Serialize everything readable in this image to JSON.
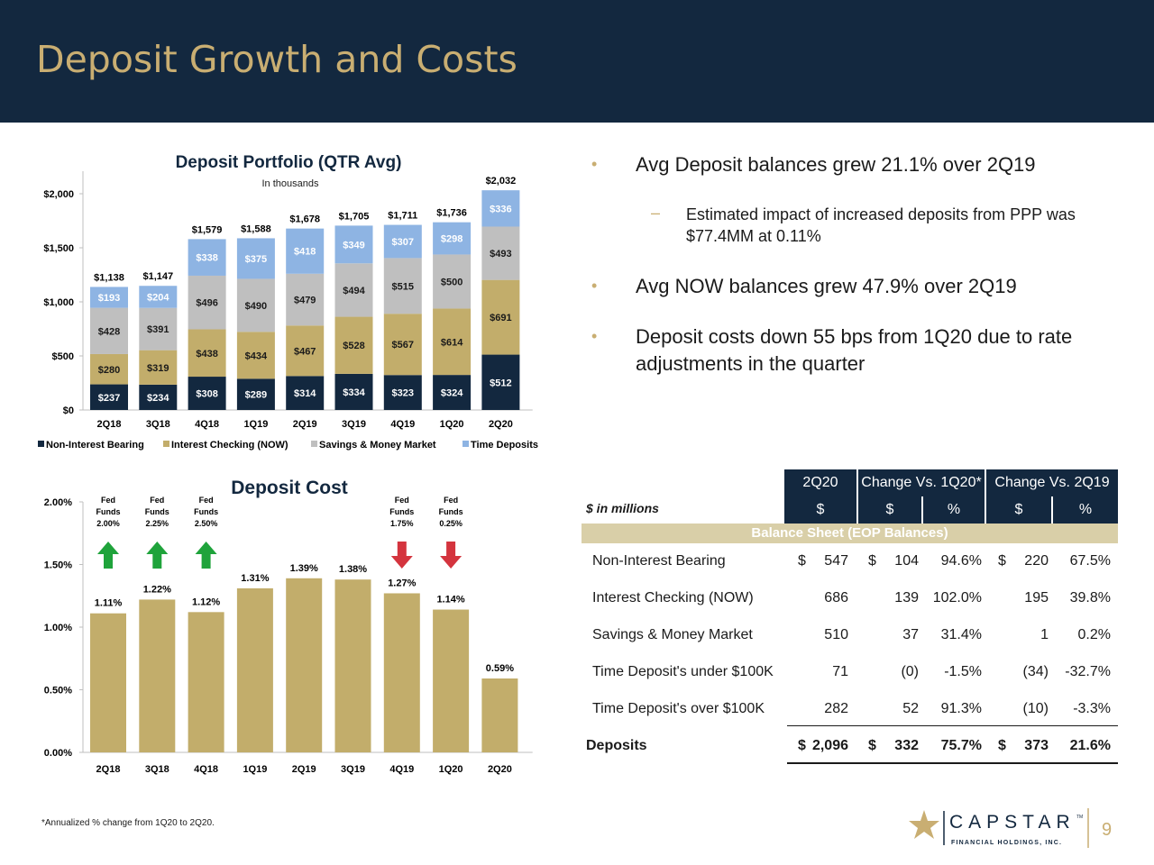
{
  "title": "Deposit Growth and Costs",
  "portfolio_chart": {
    "title": "Deposit Portfolio (QTR Avg)",
    "subtitle": "In thousands",
    "categories": [
      "2Q18",
      "3Q18",
      "4Q18",
      "1Q19",
      "2Q19",
      "3Q19",
      "4Q19",
      "1Q20",
      "2Q20"
    ],
    "series": [
      {
        "name": "Non-Interest Bearing",
        "color": "#13283f",
        "text": "#ffffff",
        "values": [
          237,
          234,
          308,
          289,
          314,
          334,
          323,
          324,
          512
        ],
        "labels": [
          "$237",
          "$234",
          "$308",
          "$289",
          "$314",
          "$334",
          "$323",
          "$324",
          "$512"
        ]
      },
      {
        "name": "Interest Checking (NOW)",
        "color": "#c2ad6b",
        "text": "#1a1a1a",
        "values": [
          280,
          319,
          438,
          434,
          467,
          528,
          567,
          614,
          691
        ],
        "labels": [
          "$280",
          "$319",
          "$438",
          "$434",
          "$467",
          "$528",
          "$567",
          "$614",
          "$691"
        ]
      },
      {
        "name": "Savings & Money Market",
        "color": "#bfbfbf",
        "text": "#1a1a1a",
        "values": [
          428,
          391,
          496,
          490,
          479,
          494,
          515,
          500,
          493
        ],
        "labels": [
          "$428",
          "$391",
          "$496",
          "$490",
          "$479",
          "$494",
          "$515",
          "$500",
          "$493"
        ]
      },
      {
        "name": "Time Deposits",
        "color": "#8eb4e3",
        "text": "#ffffff",
        "values": [
          193,
          204,
          338,
          375,
          418,
          349,
          307,
          298,
          336
        ],
        "labels": [
          "$193",
          "$204",
          "$338",
          "$375",
          "$418",
          "$349",
          "$307",
          "$298",
          "$336"
        ]
      }
    ],
    "totals": [
      "$1,138",
      "$1,147",
      "$1,579",
      "$1,588",
      "$1,678",
      "$1,705",
      "$1,711",
      "$1,736",
      "$2,032"
    ],
    "y_ticks": [
      "$0",
      "$500",
      "$1,000",
      "$1,500",
      "$2,000"
    ],
    "ylim": [
      0,
      2000
    ]
  },
  "cost_chart": {
    "title": "Deposit Cost",
    "categories": [
      "2Q18",
      "3Q18",
      "4Q18",
      "1Q19",
      "2Q19",
      "3Q19",
      "4Q19",
      "1Q20",
      "2Q20"
    ],
    "values": [
      1.11,
      1.22,
      1.12,
      1.31,
      1.39,
      1.38,
      1.27,
      1.14,
      0.59
    ],
    "labels": [
      "1.11%",
      "1.22%",
      "1.12%",
      "1.31%",
      "1.39%",
      "1.38%",
      "1.27%",
      "1.14%",
      "0.59%"
    ],
    "y_ticks": [
      "0.00%",
      "0.50%",
      "1.00%",
      "1.50%",
      "2.00%"
    ],
    "ylim": [
      0,
      2.0
    ],
    "fed_notes": [
      {
        "index": 0,
        "direction": "up",
        "lines": [
          "Fed",
          "Funds",
          "2.00%"
        ]
      },
      {
        "index": 1,
        "direction": "up",
        "lines": [
          "Fed",
          "Funds",
          "2.25%"
        ]
      },
      {
        "index": 2,
        "direction": "up",
        "lines": [
          "Fed",
          "Funds",
          "2.50%"
        ]
      },
      {
        "index": 6,
        "direction": "down",
        "lines": [
          "Fed",
          "Funds",
          "1.75%"
        ]
      },
      {
        "index": 7,
        "direction": "down",
        "lines": [
          "Fed",
          "Funds",
          "0.25%"
        ]
      }
    ]
  },
  "chart_data": [
    {
      "type": "bar",
      "title": "Deposit Portfolio (QTR Avg)",
      "subtitle": "In thousands",
      "categories": [
        "2Q18",
        "3Q18",
        "4Q18",
        "1Q19",
        "2Q19",
        "3Q19",
        "4Q19",
        "1Q20",
        "2Q20"
      ],
      "series": [
        {
          "name": "Non-Interest Bearing",
          "values": [
            237,
            234,
            308,
            289,
            314,
            334,
            323,
            324,
            512
          ]
        },
        {
          "name": "Interest Checking (NOW)",
          "values": [
            280,
            319,
            438,
            434,
            467,
            528,
            567,
            614,
            691
          ]
        },
        {
          "name": "Savings & Money Market",
          "values": [
            428,
            391,
            496,
            490,
            479,
            494,
            515,
            500,
            493
          ]
        },
        {
          "name": "Time Deposits",
          "values": [
            193,
            204,
            338,
            375,
            418,
            349,
            307,
            298,
            336
          ]
        }
      ],
      "totals": [
        1138,
        1147,
        1579,
        1588,
        1678,
        1705,
        1711,
        1736,
        2032
      ],
      "ylim": [
        0,
        2000
      ],
      "stacked": true,
      "legend": "bottom"
    },
    {
      "type": "bar",
      "title": "Deposit Cost",
      "categories": [
        "2Q18",
        "3Q18",
        "4Q18",
        "1Q19",
        "2Q19",
        "3Q19",
        "4Q19",
        "1Q20",
        "2Q20"
      ],
      "values": [
        1.11,
        1.22,
        1.12,
        1.31,
        1.39,
        1.38,
        1.27,
        1.14,
        0.59
      ],
      "ylim": [
        0,
        2.0
      ]
    }
  ],
  "bullets": [
    {
      "text": "Avg Deposit balances grew 21.1% over 2Q19"
    },
    {
      "sub": "Estimated impact of increased deposits from PPP was $77.4MM at 0.11%"
    },
    {
      "text": "Avg NOW balances grew 47.9% over 2Q19"
    },
    {
      "text": "Deposit costs down 55 bps from 1Q20 due to rate adjustments in the quarter"
    }
  ],
  "table": {
    "units_label": "$ in millions",
    "col_groups": [
      "2Q20",
      "Change Vs. 1Q20*",
      "Change Vs. 2Q19"
    ],
    "sub_headers": [
      "$",
      "$",
      "%",
      "$",
      "%"
    ],
    "section": "Balance Sheet (EOP Balances)",
    "rows": [
      {
        "label": "Non-Interest Bearing",
        "v": [
          "$",
          "547",
          "$",
          "104",
          "94.6%",
          "$",
          "220",
          "67.5%"
        ]
      },
      {
        "label": "Interest Checking (NOW)",
        "v": [
          "",
          "686",
          "",
          "139",
          "102.0%",
          "",
          "195",
          "39.8%"
        ]
      },
      {
        "label": "Savings & Money Market",
        "v": [
          "",
          "510",
          "",
          "37",
          "31.4%",
          "",
          "1",
          "0.2%"
        ]
      },
      {
        "label": "Time Deposit's under $100K",
        "v": [
          "",
          "71",
          "",
          "(0)",
          "-1.5%",
          "",
          "(34)",
          "-32.7%"
        ]
      },
      {
        "label": "Time Deposit's over $100K",
        "v": [
          "",
          "282",
          "",
          "52",
          "91.3%",
          "",
          "(10)",
          "-3.3%"
        ]
      }
    ],
    "total": {
      "label": "Deposits",
      "v": [
        "$",
        "2,096",
        "$",
        "332",
        "75.7%",
        "$",
        "373",
        "21.6%"
      ]
    }
  },
  "footnote": "*Annualized % change from 1Q20 to 2Q20.",
  "logo": {
    "name": "CAPSTAR",
    "tm": "TM",
    "tagline": "FINANCIAL HOLDINGS, INC."
  },
  "page_number": "9"
}
